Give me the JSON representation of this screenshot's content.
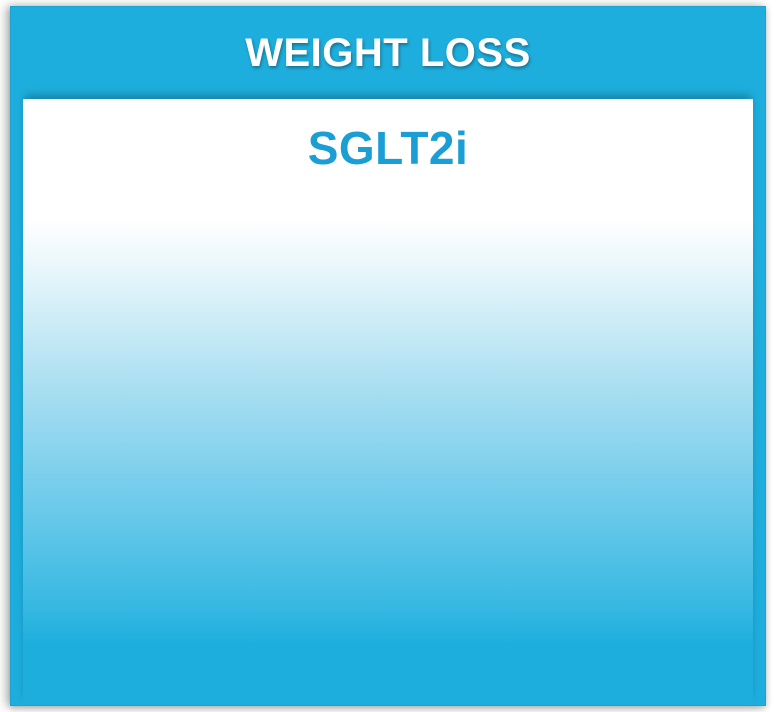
{
  "header": {
    "title": "WEIGHT LOSS"
  },
  "panel": {
    "title": "SGLT2i"
  },
  "colors": {
    "accent": "#1eaedd",
    "title_text": "#1a9ed3",
    "header_text": "#ffffff"
  }
}
